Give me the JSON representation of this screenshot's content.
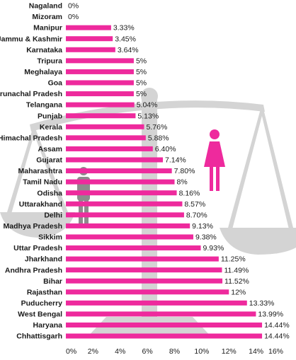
{
  "chart_data": {
    "type": "bar",
    "orientation": "horizontal",
    "categories": [
      "Nagaland",
      "Mizoram",
      "Manipur",
      "Jammu & Kashmir",
      "Karnataka",
      "Tripura",
      "Meghalaya",
      "Goa",
      "Arunachal Pradesh",
      "Telangana",
      "Punjab",
      "Kerala",
      "Himachal Pradesh",
      "Assam",
      "Gujarat",
      "Maharashtra",
      "Tamil Nadu",
      "Odisha",
      "Uttarakhand",
      "Delhi",
      "Madhya Pradesh",
      "Sikkim",
      "Uttar Pradesh",
      "Jharkhand",
      "Andhra Pradesh",
      "Bihar",
      "Rajasthan",
      "Puducherry",
      "West Bengal",
      "Haryana",
      "Chhattisgarh"
    ],
    "values": [
      0,
      0,
      3.33,
      3.45,
      3.64,
      5,
      5,
      5,
      5,
      5.04,
      5.13,
      5.76,
      5.88,
      6.4,
      7.14,
      7.8,
      8,
      8.16,
      8.57,
      8.7,
      9.13,
      9.38,
      9.93,
      11.25,
      11.49,
      11.52,
      12,
      13.33,
      13.99,
      14.44,
      14.44
    ],
    "value_labels": [
      "0%",
      "0%",
      "3.33%",
      "3.45%",
      "3.64%",
      "5%",
      "5%",
      "5%",
      "5%",
      "5.04%",
      "5.13%",
      "5.76%",
      "5.88%",
      "6.40%",
      "7.14%",
      "7.80%",
      "8%",
      "8.16%",
      "8.57%",
      "8.70%",
      "9.13%",
      "9.38%",
      "9.93%",
      "11.25%",
      "11.49%",
      "11.52%",
      "12%",
      "13.33%",
      "13.99%",
      "14.44%",
      "14.44%"
    ],
    "x_ticks": [
      "0%",
      "2%",
      "4%",
      "6%",
      "8%",
      "10%",
      "12%",
      "14%",
      "16%"
    ],
    "xlim": [
      0,
      16
    ],
    "grid": false,
    "bar_color": "#ee2a9d",
    "background_icons": [
      "scales-of-justice-icon",
      "male-figure-icon",
      "female-figure-icon"
    ]
  },
  "colors": {
    "bar": "#ee2a9d",
    "watermark": "#d4d4d4",
    "male_figure": "#8c8c8c",
    "female_figure": "#ee2a9d"
  }
}
